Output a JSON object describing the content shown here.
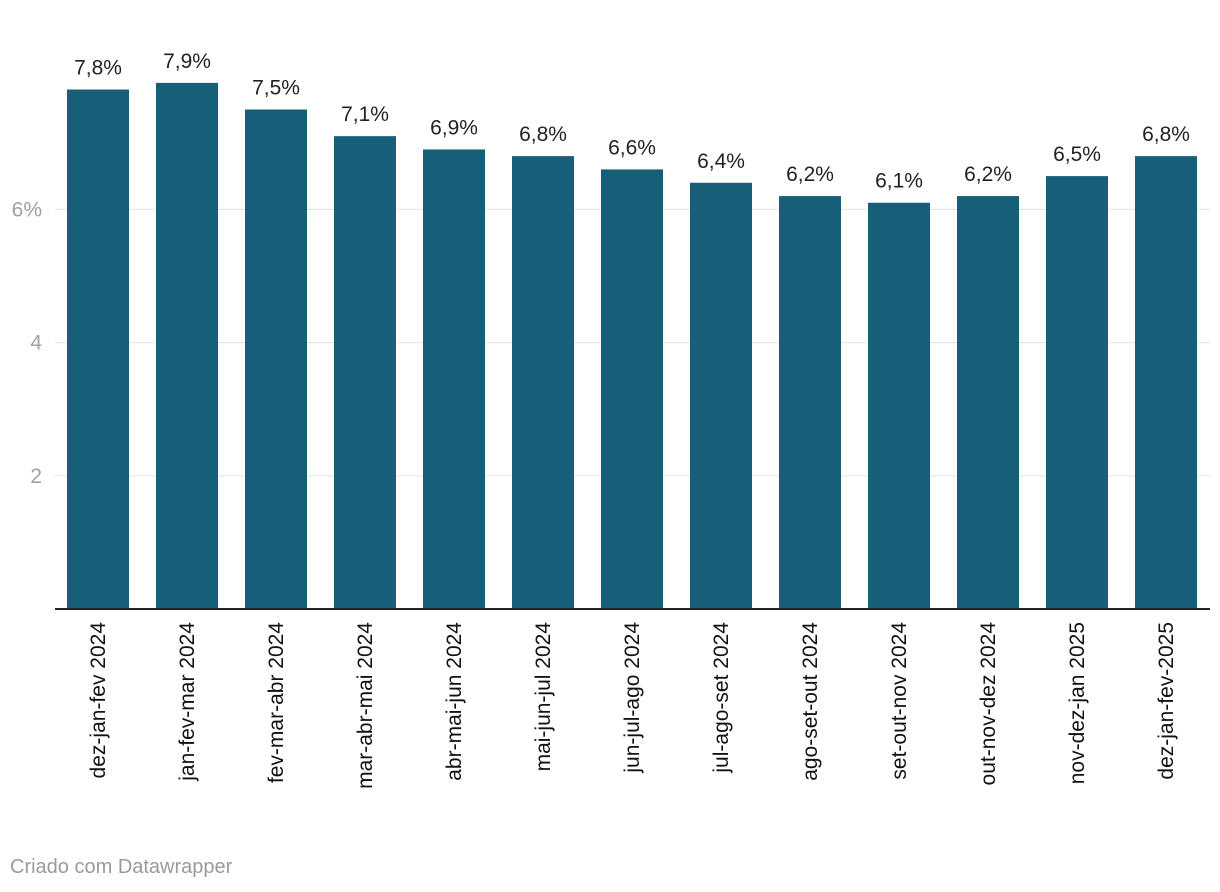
{
  "chart_data": {
    "type": "bar",
    "title": "",
    "xlabel": "",
    "ylabel": "",
    "ylim": [
      0,
      8
    ],
    "y_ticks": [
      {
        "value": 2,
        "label": "2"
      },
      {
        "value": 4,
        "label": "4"
      },
      {
        "value": 6,
        "label": "6%"
      }
    ],
    "grid": true,
    "bar_color": "#175f79",
    "categories": [
      "dez-jan-fev 2024",
      "jan-fev-mar 2024",
      "fev-mar-abr 2024",
      "mar-abr-mai 2024",
      "abr-mai-jun 2024",
      "mai-jun-jul 2024",
      "jun-jul-ago 2024",
      "jul-ago-set 2024",
      "ago-set-out 2024",
      "set-out-nov 2024",
      "out-nov-dez 2024",
      "nov-dez-jan 2025",
      "dez-jan-fev-2025"
    ],
    "values": [
      7.8,
      7.9,
      7.5,
      7.1,
      6.9,
      6.8,
      6.6,
      6.4,
      6.2,
      6.1,
      6.2,
      6.5,
      6.8
    ],
    "value_labels": [
      "7,8%",
      "7,9%",
      "7,5%",
      "7,1%",
      "6,9%",
      "6,8%",
      "6,6%",
      "6,4%",
      "6,2%",
      "6,1%",
      "6,2%",
      "6,5%",
      "6,8%"
    ]
  },
  "credit": "Criado com Datawrapper"
}
